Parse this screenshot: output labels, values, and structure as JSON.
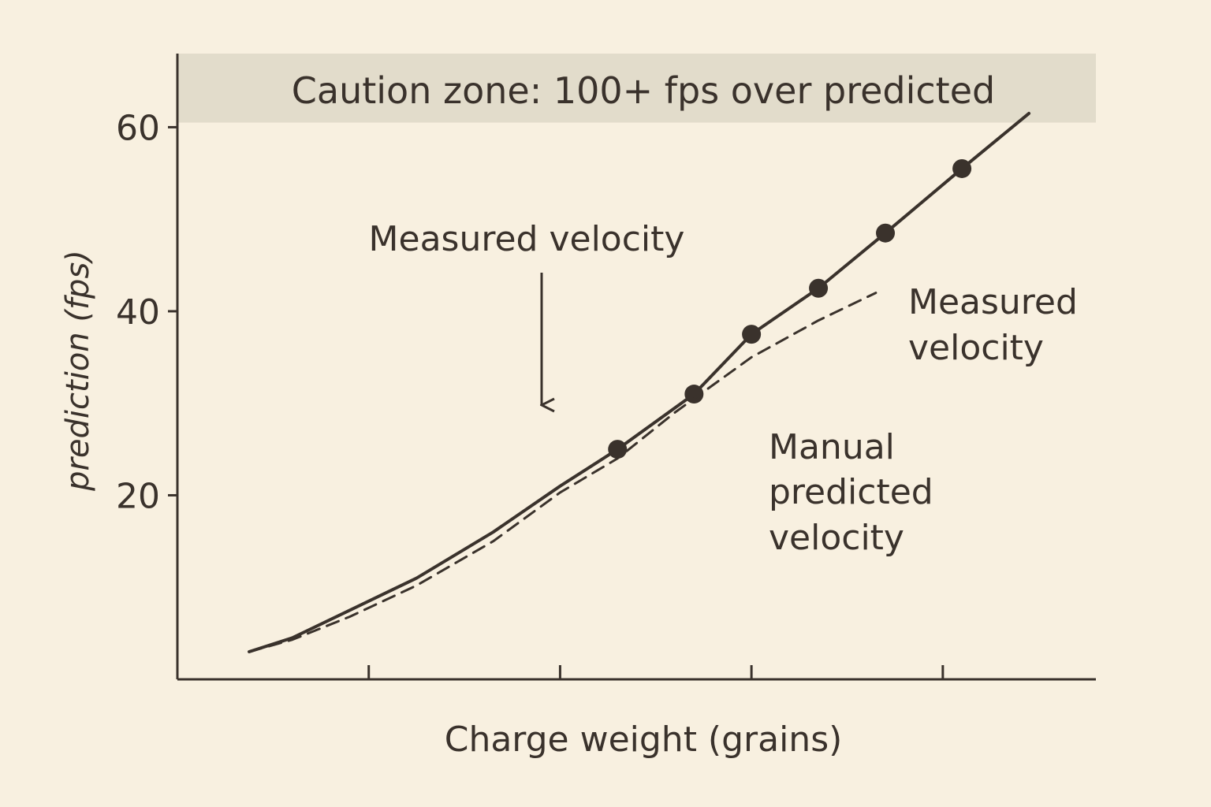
{
  "chart_data": {
    "type": "line",
    "title": "",
    "xlabel": "Charge weight (grains)",
    "ylabel": "prediction (fps)",
    "xlim": [
      0,
      9.6
    ],
    "ylim": [
      0,
      68
    ],
    "xticks": [
      2,
      4,
      6,
      8
    ],
    "yticks": [
      20,
      40,
      60
    ],
    "ytick_labels": [
      "20",
      "40",
      "60"
    ],
    "grid": false,
    "shaded_band": {
      "from": 60.5,
      "to": 68,
      "color": "#e2dccb",
      "label": "Caution zone: 100+ fps over predicted"
    },
    "colors": {
      "ink": "#3a322c",
      "background": "#f8f0e0"
    },
    "series": [
      {
        "name": "Measured velocity",
        "style": "solid",
        "x": [
          0.75,
          1.2,
          1.8,
          2.5,
          3.3,
          4.0,
          4.6,
          5.4,
          6.0,
          6.7,
          7.4,
          8.2,
          8.9
        ],
        "y": [
          3,
          4.5,
          7.5,
          11,
          16,
          21,
          25,
          31,
          37.5,
          42.5,
          48.5,
          55.5,
          61.5
        ],
        "markers": [
          false,
          false,
          false,
          false,
          false,
          false,
          true,
          true,
          true,
          true,
          true,
          true,
          false
        ]
      },
      {
        "name": "Manual predicted velocity",
        "style": "dashed",
        "x": [
          0.75,
          1.2,
          1.8,
          2.5,
          3.3,
          4.0,
          4.6,
          5.2,
          6.0,
          6.7,
          7.3
        ],
        "y": [
          3,
          4.3,
          6.8,
          10.2,
          15,
          20.3,
          24,
          29,
          35,
          39,
          42
        ]
      }
    ],
    "annotations": [
      {
        "text": "Measured velocity",
        "arrow": true
      },
      {
        "text": "Measured velocity",
        "lines": [
          "Measured",
          "velocity"
        ]
      },
      {
        "text": "Manual predicted velocity",
        "lines": [
          "Manual",
          "predicted",
          "velocity"
        ]
      }
    ]
  }
}
